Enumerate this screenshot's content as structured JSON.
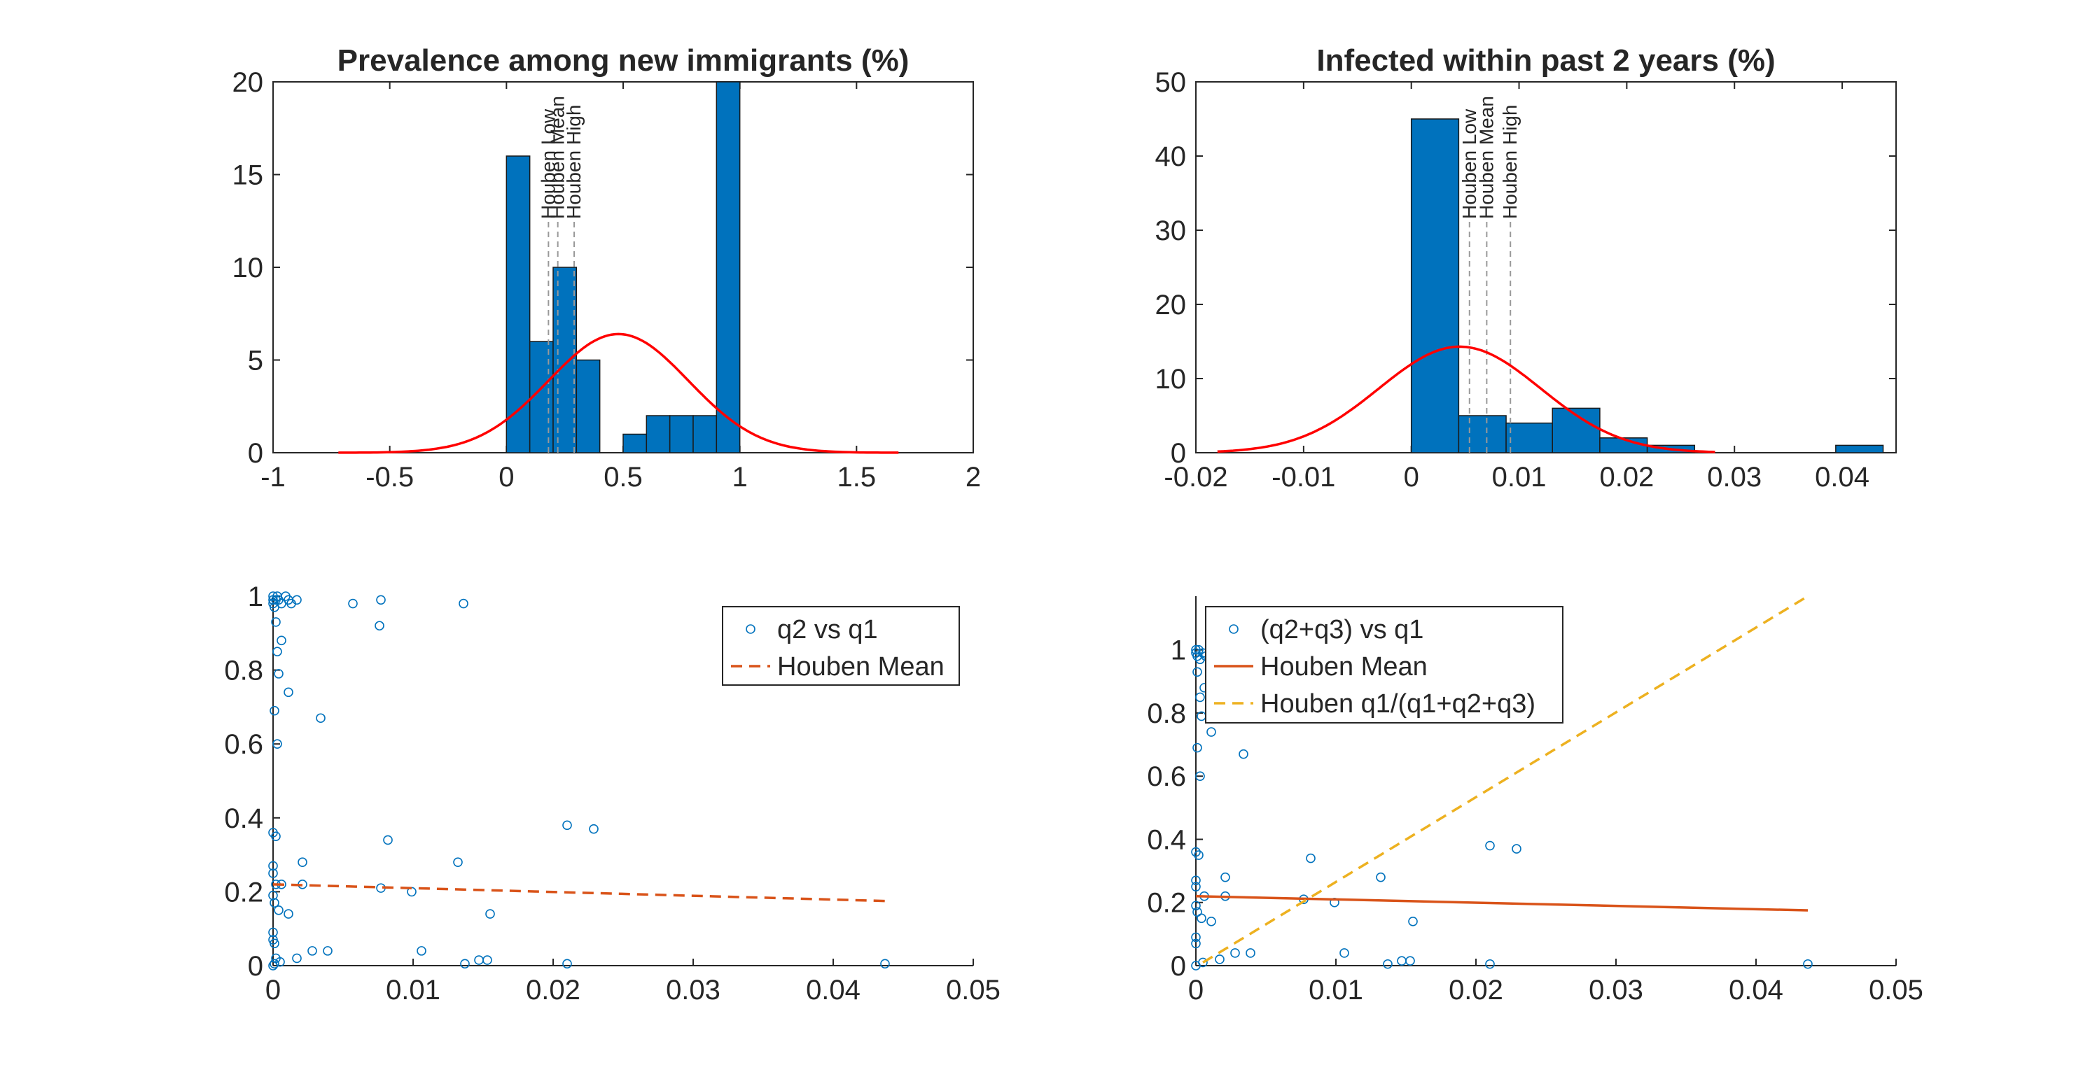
{
  "colors": {
    "bar_fill": "#0072bd",
    "bar_edge": "#1a1a1a",
    "normal_curve": "#ff0000",
    "marker": "#0072bd",
    "houben_mean_line": "#d95319",
    "houben_ratio_line": "#edb120",
    "vline": "#999999",
    "axes": "#262626"
  },
  "chart_data": [
    {
      "id": "p1",
      "type": "bar",
      "title": "Prevalence among new immigrants (%)",
      "xlim": [
        -1,
        2
      ],
      "ylim": [
        0,
        20
      ],
      "xticks": [
        -1,
        -0.5,
        0,
        0.5,
        1,
        1.5,
        2
      ],
      "yticks": [
        0,
        5,
        10,
        15,
        20
      ],
      "bins": [
        {
          "x0": 0,
          "x1": 0.1,
          "count": 16
        },
        {
          "x0": 0.1,
          "x1": 0.2,
          "count": 6
        },
        {
          "x0": 0.2,
          "x1": 0.3,
          "count": 10
        },
        {
          "x0": 0.3,
          "x1": 0.4,
          "count": 5
        },
        {
          "x0": 0.5,
          "x1": 0.6,
          "count": 1
        },
        {
          "x0": 0.6,
          "x1": 0.7,
          "count": 2
        },
        {
          "x0": 0.7,
          "x1": 0.8,
          "count": 2
        },
        {
          "x0": 0.8,
          "x1": 0.9,
          "count": 2
        },
        {
          "x0": 0.9,
          "x1": 1.0,
          "count": 20
        }
      ],
      "normal_fit": {
        "mean": 0.48,
        "sd": 0.3,
        "peak": 6.4,
        "x_range": [
          -0.72,
          1.68
        ]
      },
      "vlines": [
        {
          "label": "Houben Low",
          "x": 0.18
        },
        {
          "label": "Houben Mean",
          "x": 0.22
        },
        {
          "label": "Houben High",
          "x": 0.29
        }
      ]
    },
    {
      "id": "p2",
      "type": "bar",
      "title": "Infected within past 2 years (%)",
      "xlim": [
        -0.02,
        0.045
      ],
      "ylim": [
        0,
        50
      ],
      "xticks": [
        -0.02,
        -0.01,
        0,
        0.01,
        0.02,
        0.03,
        0.04
      ],
      "yticks": [
        0,
        10,
        20,
        30,
        40,
        50
      ],
      "bins": [
        {
          "x0": 0,
          "x1": 0.0044,
          "count": 45
        },
        {
          "x0": 0.0044,
          "x1": 0.0088,
          "count": 5
        },
        {
          "x0": 0.0088,
          "x1": 0.0131,
          "count": 4
        },
        {
          "x0": 0.0131,
          "x1": 0.0175,
          "count": 6
        },
        {
          "x0": 0.0175,
          "x1": 0.0219,
          "count": 2
        },
        {
          "x0": 0.0219,
          "x1": 0.0263,
          "count": 1
        },
        {
          "x0": 0.0394,
          "x1": 0.0438,
          "count": 1
        }
      ],
      "normal_fit": {
        "mean": 0.0045,
        "sd": 0.0075,
        "peak": 14.3,
        "x_range": [
          -0.018,
          0.0282
        ]
      },
      "vlines": [
        {
          "label": "Houben Low",
          "x": 0.0054
        },
        {
          "label": "Houben Mean",
          "x": 0.007
        },
        {
          "label": "Houben High",
          "x": 0.0092
        }
      ]
    },
    {
      "id": "p3",
      "type": "scatter",
      "xlim": [
        0,
        0.05
      ],
      "ylim": [
        0,
        1
      ],
      "xticks": [
        0,
        0.01,
        0.02,
        0.03,
        0.04,
        0.05
      ],
      "yticks": [
        0,
        0.2,
        0.4,
        0.6,
        0.8,
        1
      ],
      "tick_labels_x": [
        "0",
        "0.01",
        "0.02",
        "0.03",
        "0.04",
        "0.05"
      ],
      "tick_labels_y": [
        "0",
        "0.2",
        "0.4",
        "0.6",
        "0.8",
        "1"
      ],
      "series": [
        {
          "name": "q2 vs q1",
          "kind": "markers",
          "points": [
            [
              0,
              1
            ],
            [
              0,
              0.99
            ],
            [
              0,
              0.98
            ],
            [
              0.0001,
              0.97
            ],
            [
              0.0002,
              0.99
            ],
            [
              0.0003,
              1
            ],
            [
              0.0004,
              0.99
            ],
            [
              0.0006,
              0.98
            ],
            [
              0.0009,
              1
            ],
            [
              0.0011,
              0.99
            ],
            [
              0.0013,
              0.98
            ],
            [
              0.0017,
              0.99
            ],
            [
              0.0057,
              0.98
            ],
            [
              0.0077,
              0.99
            ],
            [
              0.0136,
              0.98
            ],
            [
              0.0076,
              0.92
            ],
            [
              0.0002,
              0.93
            ],
            [
              0.0003,
              0.85
            ],
            [
              0.0006,
              0.88
            ],
            [
              0.0004,
              0.79
            ],
            [
              0.0011,
              0.74
            ],
            [
              0.0001,
              0.69
            ],
            [
              0.0003,
              0.6
            ],
            [
              0.0034,
              0.67
            ],
            [
              0,
              0.36
            ],
            [
              0.0002,
              0.35
            ],
            [
              0.0082,
              0.34
            ],
            [
              0.021,
              0.38
            ],
            [
              0.0229,
              0.37
            ],
            [
              0.0021,
              0.28
            ],
            [
              0.0132,
              0.28
            ],
            [
              0,
              0.27
            ],
            [
              0,
              0.25
            ],
            [
              0.0002,
              0.22
            ],
            [
              0.0006,
              0.22
            ],
            [
              0.0021,
              0.22
            ],
            [
              0.0077,
              0.21
            ],
            [
              0.0099,
              0.2
            ],
            [
              0,
              0.19
            ],
            [
              0.0001,
              0.17
            ],
            [
              0.0004,
              0.15
            ],
            [
              0.0011,
              0.14
            ],
            [
              0.0155,
              0.14
            ],
            [
              0,
              0.09
            ],
            [
              0,
              0.07
            ],
            [
              0.0001,
              0.06
            ],
            [
              0.0028,
              0.04
            ],
            [
              0.0039,
              0.04
            ],
            [
              0.0106,
              0.04
            ],
            [
              0.0147,
              0.015
            ],
            [
              0.0153,
              0.015
            ],
            [
              0.0002,
              0.02
            ],
            [
              0.0005,
              0.01
            ],
            [
              0.0017,
              0.02
            ],
            [
              0.0137,
              0.005
            ],
            [
              0.021,
              0.005
            ],
            [
              0.0437,
              0.005
            ],
            [
              0.0001,
              0.005
            ],
            [
              0,
              0.0
            ]
          ]
        },
        {
          "name": "Houben Mean",
          "kind": "line",
          "style": "dashed",
          "points": [
            [
              0,
              0.22
            ],
            [
              0.0437,
              0.175
            ]
          ]
        }
      ],
      "legend": "top-right"
    },
    {
      "id": "p4",
      "type": "scatter",
      "xlim": [
        0,
        0.05
      ],
      "ylim": [
        0,
        1.17
      ],
      "xticks": [
        0,
        0.01,
        0.02,
        0.03,
        0.04,
        0.05
      ],
      "yticks": [
        0,
        0.2,
        0.4,
        0.6,
        0.8,
        1
      ],
      "tick_labels_x": [
        "0",
        "0.01",
        "0.02",
        "0.03",
        "0.04",
        "0.05"
      ],
      "tick_labels_y": [
        "0",
        "0.2",
        "0.4",
        "0.6",
        "0.8",
        "1"
      ],
      "series": [
        {
          "name": "(q2+q3) vs q1",
          "kind": "markers",
          "points": [
            [
              0,
              1
            ],
            [
              0,
              0.99
            ],
            [
              0.0001,
              0.98
            ],
            [
              0.0002,
              1
            ],
            [
              0.0003,
              0.97
            ],
            [
              0.0005,
              0.99
            ],
            [
              0.0007,
              0.98
            ],
            [
              0.0001,
              0.93
            ],
            [
              0.0003,
              0.85
            ],
            [
              0.0006,
              0.88
            ],
            [
              0.0004,
              0.79
            ],
            [
              0.0011,
              0.74
            ],
            [
              0.0001,
              0.69
            ],
            [
              0.0003,
              0.6
            ],
            [
              0.0034,
              0.67
            ],
            [
              0,
              0.36
            ],
            [
              0.0002,
              0.35
            ],
            [
              0.0082,
              0.34
            ],
            [
              0.021,
              0.38
            ],
            [
              0.0229,
              0.37
            ],
            [
              0.0021,
              0.28
            ],
            [
              0.0132,
              0.28
            ],
            [
              0,
              0.27
            ],
            [
              0,
              0.25
            ],
            [
              0.0006,
              0.22
            ],
            [
              0.0021,
              0.22
            ],
            [
              0.0077,
              0.21
            ],
            [
              0.0099,
              0.2
            ],
            [
              0,
              0.19
            ],
            [
              0.0001,
              0.17
            ],
            [
              0.0004,
              0.15
            ],
            [
              0.0011,
              0.14
            ],
            [
              0.0155,
              0.14
            ],
            [
              0,
              0.09
            ],
            [
              0,
              0.07
            ],
            [
              0.0028,
              0.04
            ],
            [
              0.0039,
              0.04
            ],
            [
              0.0106,
              0.04
            ],
            [
              0.0147,
              0.015
            ],
            [
              0.0153,
              0.015
            ],
            [
              0.0017,
              0.02
            ],
            [
              0.0005,
              0.01
            ],
            [
              0.0137,
              0.005
            ],
            [
              0.021,
              0.005
            ],
            [
              0.0437,
              0.005
            ],
            [
              0,
              0.0
            ]
          ]
        },
        {
          "name": "Houben Mean",
          "kind": "line",
          "style": "solid",
          "points": [
            [
              0,
              0.22
            ],
            [
              0.0437,
              0.175
            ]
          ]
        },
        {
          "name": "Houben q1/(q1+q2+q3)",
          "kind": "line",
          "style": "dashed",
          "points": [
            [
              0.0005,
              0.01
            ],
            [
              0.0437,
              1.17
            ]
          ]
        }
      ],
      "legend": "top-left"
    }
  ]
}
